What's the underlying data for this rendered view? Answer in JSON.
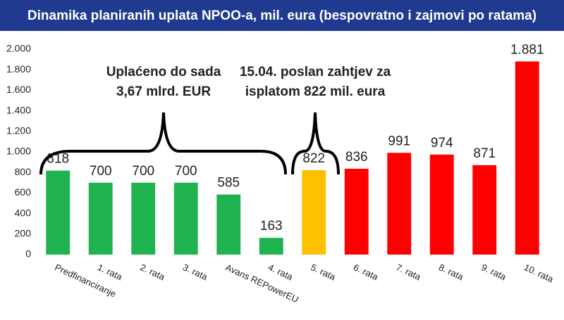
{
  "chart_data": {
    "type": "bar",
    "title": "Dinamika planiranih uplata NPOO-a, mil. eura (bespovratno i zajmovi po ratama)",
    "categories": [
      "Predfinanciranje",
      "1. rata",
      "2. rata",
      "3. rata",
      "Avans REPowerEU",
      "4. rata",
      "5. rata",
      "6. rata",
      "7. rata",
      "8. rata",
      "9. rata",
      "10. rata"
    ],
    "values": [
      818,
      700,
      700,
      700,
      585,
      163,
      822,
      836,
      991,
      974,
      871,
      1881
    ],
    "value_labels": [
      "818",
      "700",
      "700",
      "700",
      "585",
      "163",
      "822",
      "836",
      "991",
      "974",
      "871",
      "1.881"
    ],
    "colors": [
      "#1fb34f",
      "#1fb34f",
      "#1fb34f",
      "#1fb34f",
      "#1fb34f",
      "#1fb34f",
      "#ffc000",
      "#ff0000",
      "#ff0000",
      "#ff0000",
      "#ff0000",
      "#ff0000"
    ],
    "ylim": [
      0,
      2000
    ],
    "yticks": [
      0,
      200,
      400,
      600,
      800,
      {
        "value": 1000,
        "label": "1.000"
      },
      {
        "value": 1200,
        "label": "1.200"
      },
      {
        "value": 1400,
        "label": "1.400"
      },
      {
        "value": 1600,
        "label": "1.600"
      },
      {
        "value": 1800,
        "label": "1.800"
      },
      {
        "value": 2000,
        "label": "2.000"
      }
    ],
    "grid": false,
    "annotations": [
      [
        "Uplaćeno do sada",
        "3,67 mlrd. EUR"
      ],
      [
        "15.04. poslan zahtjev za",
        "isplatom 822 mil. eura"
      ]
    ]
  }
}
